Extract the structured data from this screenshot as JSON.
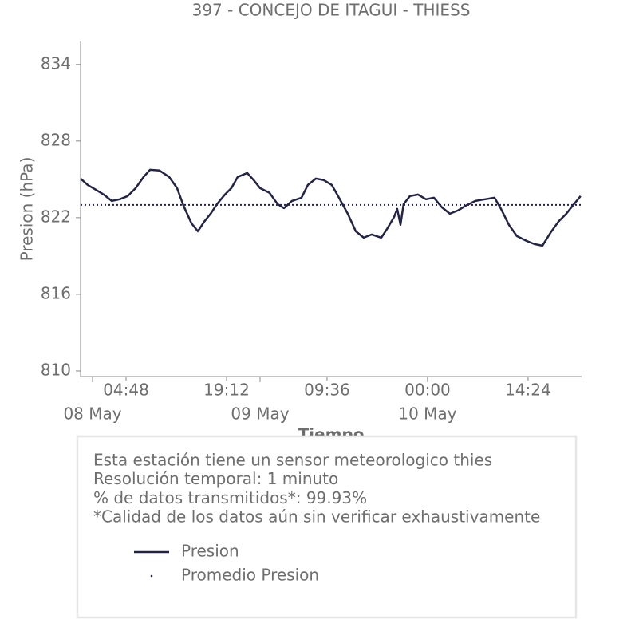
{
  "chart_data": {
    "type": "line",
    "title": "397 - CONCEJO DE ITAGUI - THIESS",
    "xlabel": "Tiempo",
    "ylabel": "Presion (hPa)",
    "x": [
      "07 May 22:17",
      "07 May 23:19",
      "08 May 00:27",
      "08 May 01:36",
      "08 May 02:45",
      "08 May 03:53",
      "08 May 05:02",
      "08 May 06:10",
      "08 May 07:19",
      "08 May 08:14",
      "08 May 09:36",
      "08 May 10:58",
      "08 May 12:07",
      "08 May 13:02",
      "08 May 14:10",
      "08 May 15:05",
      "08 May 16:00",
      "08 May 16:55",
      "08 May 17:50",
      "08 May 18:58",
      "08 May 19:53",
      "08 May 20:48",
      "08 May 22:10",
      "08 May 23:05",
      "09 May 00:00",
      "09 May 01:22",
      "09 May 02:31",
      "09 May 03:26",
      "09 May 04:34",
      "09 May 05:56",
      "09 May 06:51",
      "09 May 08:00",
      "09 May 09:08",
      "09 May 10:17",
      "09 May 11:26",
      "09 May 12:34",
      "09 May 13:43",
      "09 May 14:51",
      "09 May 16:00",
      "09 May 17:22",
      "09 May 18:17",
      "09 May 19:12",
      "09 May 19:39",
      "09 May 20:07",
      "09 May 20:34",
      "09 May 21:29",
      "09 May 22:38",
      "09 May 23:46",
      "10 May 00:55",
      "10 May 02:03",
      "10 May 03:12",
      "10 May 04:20",
      "10 May 05:29",
      "10 May 06:51",
      "10 May 08:14",
      "10 May 09:36",
      "10 May 10:31",
      "10 May 11:39",
      "10 May 12:48",
      "10 May 14:10",
      "10 May 15:19",
      "10 May 16:27",
      "10 May 17:36",
      "10 May 18:45",
      "10 May 19:53",
      "10 May 20:48",
      "10 May 21:56"
    ],
    "series": [
      {
        "name": "Presion",
        "color": "#232345",
        "values": [
          825.06,
          824.56,
          824.19,
          823.81,
          823.31,
          823.44,
          823.69,
          824.31,
          825.19,
          825.75,
          825.69,
          825.19,
          824.31,
          822.94,
          821.56,
          820.94,
          821.69,
          822.31,
          823.06,
          823.81,
          824.31,
          825.19,
          825.5,
          824.94,
          824.31,
          823.94,
          823.06,
          822.75,
          823.31,
          823.56,
          824.56,
          825.06,
          824.94,
          824.56,
          823.44,
          822.31,
          820.94,
          820.44,
          820.69,
          820.44,
          821.19,
          822.06,
          822.69,
          821.44,
          823.06,
          823.69,
          823.81,
          823.44,
          823.56,
          822.81,
          822.31,
          822.56,
          822.94,
          823.31,
          823.44,
          823.56,
          822.69,
          821.44,
          820.56,
          820.19,
          819.94,
          819.81,
          820.81,
          821.69,
          822.31,
          822.94,
          823.69
        ]
      }
    ],
    "mean_line": {
      "name": "Promedio Presion",
      "value": 823.0,
      "color": "#232345"
    },
    "xlim": [
      "07 May 22:17",
      "10 May 22:04"
    ],
    "xticks": [
      {
        "value": "08 May 04:48",
        "label": "04:48"
      },
      {
        "value": "08 May 19:12",
        "label": "19:12"
      },
      {
        "value": "09 May 09:36",
        "label": "09:36"
      },
      {
        "value": "10 May 00:00",
        "label": "00:00"
      },
      {
        "value": "10 May 14:24",
        "label": "14:24"
      }
    ],
    "xticks_major": [
      {
        "value": "08 May 00:00",
        "label": "08 May"
      },
      {
        "value": "09 May 00:00",
        "label": "09 May"
      },
      {
        "value": "10 May 00:00",
        "label": "10 May"
      }
    ],
    "ylim": [
      809.56,
      835.8
    ],
    "yticks": [
      810,
      816,
      822,
      828,
      834
    ]
  },
  "info_box": {
    "lines": [
      "Esta estación tiene un sensor meteorologico thies",
      "Resolución temporal: 1 minuto",
      "% de datos transmitidos*: 99.93%",
      "*Calidad de los datos aún sin verificar exhaustivamente"
    ]
  }
}
